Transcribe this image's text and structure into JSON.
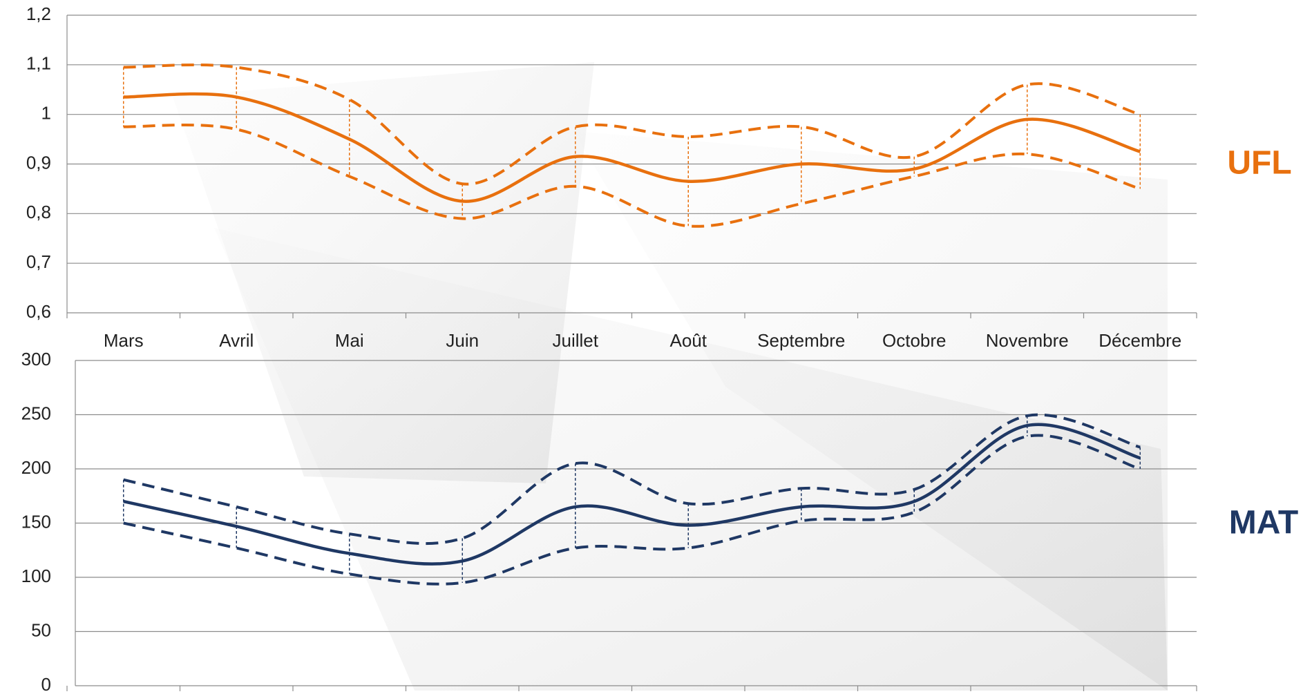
{
  "chart_data": [
    {
      "type": "line",
      "label": "UFL",
      "label_color": "#e8700e",
      "categories": [
        "Mars",
        "Avril",
        "Mai",
        "Juin",
        "Juillet",
        "Août",
        "Septembre",
        "Octobre",
        "Novembre",
        "Décembre"
      ],
      "series": [
        {
          "color": "#e8700e",
          "dashed": true,
          "values": [
            1.095,
            1.095,
            1.03,
            0.86,
            0.975,
            0.955,
            0.975,
            0.915,
            1.06,
            1.0
          ]
        },
        {
          "color": "#e8700e",
          "dashed": false,
          "values": [
            1.035,
            1.035,
            0.95,
            0.825,
            0.915,
            0.865,
            0.9,
            0.89,
            0.99,
            0.925
          ]
        },
        {
          "color": "#e8700e",
          "dashed": true,
          "values": [
            0.975,
            0.97,
            0.875,
            0.79,
            0.855,
            0.775,
            0.82,
            0.875,
            0.92,
            0.85
          ]
        }
      ],
      "ylim": [
        0.6,
        1.2
      ],
      "yticks": [
        {
          "value": 0.6,
          "label": "0,6"
        },
        {
          "value": 0.7,
          "label": "0,7"
        },
        {
          "value": 0.8,
          "label": "0,8"
        },
        {
          "value": 0.9,
          "label": "0,9"
        },
        1,
        {
          "value": 1.1,
          "label": "1,1"
        },
        {
          "value": 1.2,
          "label": "1,2"
        }
      ],
      "grid": true
    },
    {
      "type": "line",
      "label": "MAT",
      "label_color": "#1f3864",
      "categories": [
        null,
        null,
        null,
        null,
        null,
        null,
        null,
        null,
        null,
        null
      ],
      "series": [
        {
          "color": "#1f3864",
          "dashed": true,
          "values": [
            190,
            165,
            140,
            136,
            205,
            168,
            182,
            181,
            249,
            220
          ]
        },
        {
          "color": "#1f3864",
          "dashed": false,
          "values": [
            170,
            147,
            122,
            115,
            165,
            148,
            165,
            170,
            240,
            210
          ]
        },
        {
          "color": "#1f3864",
          "dashed": true,
          "values": [
            150,
            127,
            103,
            95,
            127,
            127,
            152,
            160,
            230,
            200
          ]
        }
      ],
      "ylim": [
        0,
        300
      ],
      "yticks": [
        0,
        50,
        100,
        150,
        200,
        250,
        300
      ],
      "grid": true
    }
  ]
}
